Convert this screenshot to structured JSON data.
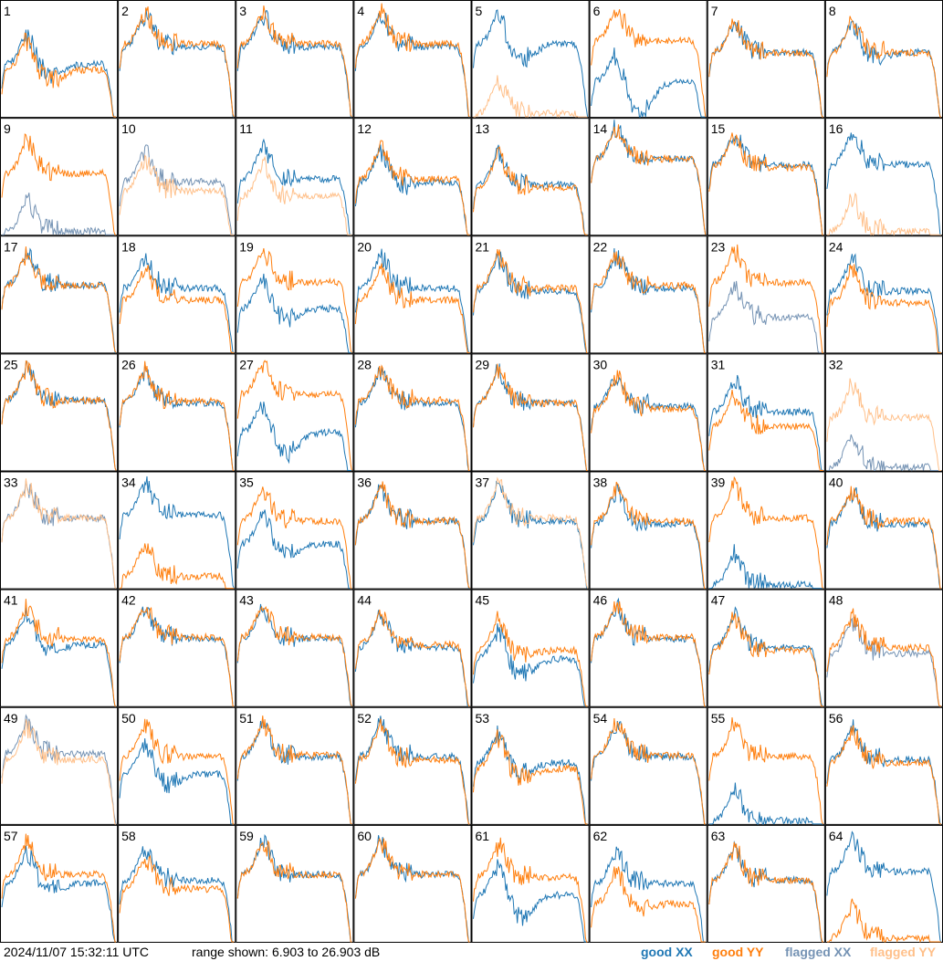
{
  "footer": {
    "timestamp": "2024/11/07 15:32:11 UTC",
    "range_label": "range shown: 6.903 to 26.903 dB",
    "legend": [
      {
        "label": "good XX",
        "color": "#1f77b4"
      },
      {
        "label": "good YY",
        "color": "#ff7f0e"
      },
      {
        "label": "flagged XX",
        "color": "#7593b4"
      },
      {
        "label": "flagged YY",
        "color": "#ffc08a"
      }
    ]
  },
  "chart_data": {
    "type": "line",
    "grid": {
      "rows": 8,
      "cols": 8
    },
    "ylim_db": [
      6.903,
      26.903
    ],
    "x": "frequency channel (relative 0..1)",
    "panels": [
      {
        "id": 1,
        "xx": {
          "level": 16,
          "dip": 2,
          "flag": false
        },
        "yy": {
          "level": 15,
          "dip": 2,
          "flag": false
        }
      },
      {
        "id": 2,
        "xx": {
          "level": 19,
          "dip": 0,
          "flag": false
        },
        "yy": {
          "level": 19.5,
          "dip": 0,
          "flag": false
        }
      },
      {
        "id": 3,
        "xx": {
          "level": 19,
          "dip": 0,
          "flag": false
        },
        "yy": {
          "level": 19.5,
          "dip": 0,
          "flag": false
        }
      },
      {
        "id": 4,
        "xx": {
          "level": 19,
          "dip": 0,
          "flag": false
        },
        "yy": {
          "level": 19.5,
          "dip": 0,
          "flag": false
        }
      },
      {
        "id": 5,
        "xx": {
          "level": 19.5,
          "dip": 3,
          "flag": false
        },
        "yy": {
          "level": 7.5,
          "dip": 0,
          "flag": true
        }
      },
      {
        "id": 6,
        "xx": {
          "level": 13,
          "dip": 6,
          "flag": false
        },
        "yy": {
          "level": 20,
          "dip": 0,
          "flag": false
        }
      },
      {
        "id": 7,
        "xx": {
          "level": 18,
          "dip": 0,
          "flag": false
        },
        "yy": {
          "level": 18,
          "dip": 0,
          "flag": false
        }
      },
      {
        "id": 8,
        "xx": {
          "level": 18,
          "dip": 1,
          "flag": false
        },
        "yy": {
          "level": 18,
          "dip": 0,
          "flag": false
        }
      },
      {
        "id": 9,
        "xx": {
          "level": 7.5,
          "dip": 0,
          "flag": true
        },
        "yy": {
          "level": 17.5,
          "dip": 0,
          "flag": false
        }
      },
      {
        "id": 10,
        "xx": {
          "level": 16,
          "dip": 0,
          "flag": true
        },
        "yy": {
          "level": 14.5,
          "dip": 0,
          "flag": true
        }
      },
      {
        "id": 11,
        "xx": {
          "level": 16.5,
          "dip": 0,
          "flag": false
        },
        "yy": {
          "level": 13.5,
          "dip": 0,
          "flag": true
        }
      },
      {
        "id": 12,
        "xx": {
          "level": 16,
          "dip": 1,
          "flag": false
        },
        "yy": {
          "level": 16.5,
          "dip": 0,
          "flag": false
        }
      },
      {
        "id": 13,
        "xx": {
          "level": 15.5,
          "dip": 0,
          "flag": false
        },
        "yy": {
          "level": 15,
          "dip": 0,
          "flag": false
        }
      },
      {
        "id": 14,
        "xx": {
          "level": 20,
          "dip": 0,
          "flag": false
        },
        "yy": {
          "level": 20,
          "dip": 0,
          "flag": false
        }
      },
      {
        "id": 15,
        "xx": {
          "level": 19,
          "dip": 0,
          "flag": false
        },
        "yy": {
          "level": 18.5,
          "dip": 0,
          "flag": false
        }
      },
      {
        "id": 16,
        "xx": {
          "level": 19,
          "dip": 0,
          "flag": false
        },
        "yy": {
          "level": 7.5,
          "dip": 0,
          "flag": true
        }
      },
      {
        "id": 17,
        "xx": {
          "level": 18.5,
          "dip": 0,
          "flag": false
        },
        "yy": {
          "level": 18.5,
          "dip": 0,
          "flag": false
        }
      },
      {
        "id": 18,
        "xx": {
          "level": 18,
          "dip": 0,
          "flag": false
        },
        "yy": {
          "level": 16,
          "dip": 0,
          "flag": false
        }
      },
      {
        "id": 19,
        "xx": {
          "level": 14.5,
          "dip": 2,
          "flag": false
        },
        "yy": {
          "level": 19,
          "dip": 0,
          "flag": false
        }
      },
      {
        "id": 20,
        "xx": {
          "level": 18,
          "dip": 0,
          "flag": false
        },
        "yy": {
          "level": 16,
          "dip": 0,
          "flag": false
        }
      },
      {
        "id": 21,
        "xx": {
          "level": 17.5,
          "dip": 0,
          "flag": false
        },
        "yy": {
          "level": 18,
          "dip": 0,
          "flag": false
        }
      },
      {
        "id": 22,
        "xx": {
          "level": 18,
          "dip": 0,
          "flag": false
        },
        "yy": {
          "level": 18.5,
          "dip": 0,
          "flag": false
        }
      },
      {
        "id": 23,
        "xx": {
          "level": 13,
          "dip": 0,
          "flag": true
        },
        "yy": {
          "level": 19,
          "dip": 0,
          "flag": false
        }
      },
      {
        "id": 24,
        "xx": {
          "level": 17.5,
          "dip": 0,
          "flag": false
        },
        "yy": {
          "level": 15.5,
          "dip": 0,
          "flag": false
        }
      },
      {
        "id": 25,
        "xx": {
          "level": 19,
          "dip": 0,
          "flag": false
        },
        "yy": {
          "level": 19,
          "dip": 0,
          "flag": false
        }
      },
      {
        "id": 26,
        "xx": {
          "level": 18.5,
          "dip": 0,
          "flag": false
        },
        "yy": {
          "level": 18.8,
          "dip": 0,
          "flag": false
        }
      },
      {
        "id": 27,
        "xx": {
          "level": 13.5,
          "dip": 4,
          "flag": false
        },
        "yy": {
          "level": 20,
          "dip": 0,
          "flag": false
        }
      },
      {
        "id": 28,
        "xx": {
          "level": 18.5,
          "dip": 0,
          "flag": false
        },
        "yy": {
          "level": 19,
          "dip": 0,
          "flag": false
        }
      },
      {
        "id": 29,
        "xx": {
          "level": 18.5,
          "dip": 0,
          "flag": false
        },
        "yy": {
          "level": 18.5,
          "dip": 0,
          "flag": false
        }
      },
      {
        "id": 30,
        "xx": {
          "level": 18,
          "dip": 0,
          "flag": false
        },
        "yy": {
          "level": 17.5,
          "dip": 0,
          "flag": false
        }
      },
      {
        "id": 31,
        "xx": {
          "level": 17,
          "dip": 0,
          "flag": false
        },
        "yy": {
          "level": 14.5,
          "dip": 0,
          "flag": false
        }
      },
      {
        "id": 32,
        "xx": {
          "level": 7.5,
          "dip": 0,
          "flag": true
        },
        "yy": {
          "level": 16,
          "dip": 0,
          "flag": true
        }
      },
      {
        "id": 33,
        "xx": {
          "level": 19,
          "dip": 0,
          "flag": true
        },
        "yy": {
          "level": 19,
          "dip": 0,
          "flag": true
        }
      },
      {
        "id": 34,
        "xx": {
          "level": 19.5,
          "dip": 0,
          "flag": false
        },
        "yy": {
          "level": 9,
          "dip": 0,
          "flag": false
        }
      },
      {
        "id": 35,
        "xx": {
          "level": 14.5,
          "dip": 2,
          "flag": false
        },
        "yy": {
          "level": 18.5,
          "dip": 0,
          "flag": false
        }
      },
      {
        "id": 36,
        "xx": {
          "level": 18.5,
          "dip": 0,
          "flag": false
        },
        "yy": {
          "level": 18.5,
          "dip": 0,
          "flag": false
        }
      },
      {
        "id": 37,
        "xx": {
          "level": 18.5,
          "dip": 0,
          "flag": false
        },
        "yy": {
          "level": 19,
          "dip": 0,
          "flag": true
        }
      },
      {
        "id": 38,
        "xx": {
          "level": 18,
          "dip": 0,
          "flag": false
        },
        "yy": {
          "level": 18.5,
          "dip": 0,
          "flag": false
        }
      },
      {
        "id": 39,
        "xx": {
          "level": 7.5,
          "dip": 0,
          "flag": false
        },
        "yy": {
          "level": 19,
          "dip": 0,
          "flag": false
        }
      },
      {
        "id": 40,
        "xx": {
          "level": 18,
          "dip": 0,
          "flag": false
        },
        "yy": {
          "level": 18.5,
          "dip": 0,
          "flag": false
        }
      },
      {
        "id": 41,
        "xx": {
          "level": 17.5,
          "dip": 1,
          "flag": false
        },
        "yy": {
          "level": 18.5,
          "dip": 0,
          "flag": false
        }
      },
      {
        "id": 42,
        "xx": {
          "level": 18.5,
          "dip": 0,
          "flag": false
        },
        "yy": {
          "level": 18.8,
          "dip": 0,
          "flag": false
        }
      },
      {
        "id": 43,
        "xx": {
          "level": 18.5,
          "dip": 0,
          "flag": false
        },
        "yy": {
          "level": 18.8,
          "dip": 0,
          "flag": false
        }
      },
      {
        "id": 44,
        "xx": {
          "level": 17,
          "dip": 0,
          "flag": false
        },
        "yy": {
          "level": 17.5,
          "dip": 0,
          "flag": false
        }
      },
      {
        "id": 45,
        "xx": {
          "level": 15,
          "dip": 3,
          "flag": false
        },
        "yy": {
          "level": 16.5,
          "dip": 1,
          "flag": false
        }
      },
      {
        "id": 46,
        "xx": {
          "level": 18.5,
          "dip": 0,
          "flag": false
        },
        "yy": {
          "level": 18.8,
          "dip": 0,
          "flag": false
        }
      },
      {
        "id": 47,
        "xx": {
          "level": 17,
          "dip": 0,
          "flag": false
        },
        "yy": {
          "level": 16.5,
          "dip": 0,
          "flag": false
        }
      },
      {
        "id": 48,
        "xx": {
          "level": 16,
          "dip": 0,
          "flag": true
        },
        "yy": {
          "level": 17,
          "dip": 0,
          "flag": false
        }
      },
      {
        "id": 49,
        "xx": {
          "level": 19,
          "dip": 0,
          "flag": true
        },
        "yy": {
          "level": 18,
          "dip": 0,
          "flag": true
        }
      },
      {
        "id": 50,
        "xx": {
          "level": 15.5,
          "dip": 2,
          "flag": false
        },
        "yy": {
          "level": 18.5,
          "dip": 0,
          "flag": false
        }
      },
      {
        "id": 51,
        "xx": {
          "level": 18.5,
          "dip": 0,
          "flag": false
        },
        "yy": {
          "level": 18.8,
          "dip": 0,
          "flag": false
        }
      },
      {
        "id": 52,
        "xx": {
          "level": 18.5,
          "dip": 0,
          "flag": false
        },
        "yy": {
          "level": 18,
          "dip": 0,
          "flag": false
        }
      },
      {
        "id": 53,
        "xx": {
          "level": 17.5,
          "dip": 2,
          "flag": false
        },
        "yy": {
          "level": 16.5,
          "dip": 2,
          "flag": false
        }
      },
      {
        "id": 54,
        "xx": {
          "level": 18.5,
          "dip": 0,
          "flag": false
        },
        "yy": {
          "level": 18.8,
          "dip": 0,
          "flag": false
        }
      },
      {
        "id": 55,
        "xx": {
          "level": 7.5,
          "dip": 0,
          "flag": false
        },
        "yy": {
          "level": 18.5,
          "dip": 0,
          "flag": false
        }
      },
      {
        "id": 56,
        "xx": {
          "level": 18,
          "dip": 0,
          "flag": false
        },
        "yy": {
          "level": 17.5,
          "dip": 0,
          "flag": false
        }
      },
      {
        "id": 57,
        "xx": {
          "level": 17,
          "dip": 1.5,
          "flag": false
        },
        "yy": {
          "level": 18.5,
          "dip": 0,
          "flag": false
        }
      },
      {
        "id": 58,
        "xx": {
          "level": 17.5,
          "dip": 0,
          "flag": false
        },
        "yy": {
          "level": 16,
          "dip": 0,
          "flag": false
        }
      },
      {
        "id": 59,
        "xx": {
          "level": 18.5,
          "dip": 0,
          "flag": false
        },
        "yy": {
          "level": 18.5,
          "dip": 0,
          "flag": false
        }
      },
      {
        "id": 60,
        "xx": {
          "level": 18.5,
          "dip": 0,
          "flag": false
        },
        "yy": {
          "level": 18.5,
          "dip": 0,
          "flag": false
        }
      },
      {
        "id": 61,
        "xx": {
          "level": 15,
          "dip": 4,
          "flag": false
        },
        "yy": {
          "level": 18,
          "dip": 0,
          "flag": false
        }
      },
      {
        "id": 62,
        "xx": {
          "level": 17,
          "dip": 0,
          "flag": false
        },
        "yy": {
          "level": 13.5,
          "dip": 1,
          "flag": false
        }
      },
      {
        "id": 63,
        "xx": {
          "level": 17.5,
          "dip": 0,
          "flag": false
        },
        "yy": {
          "level": 17.5,
          "dip": 0,
          "flag": false
        }
      },
      {
        "id": 64,
        "xx": {
          "level": 19,
          "dip": 0,
          "flag": false
        },
        "yy": {
          "level": 7.5,
          "dip": 0,
          "flag": false
        }
      }
    ]
  }
}
